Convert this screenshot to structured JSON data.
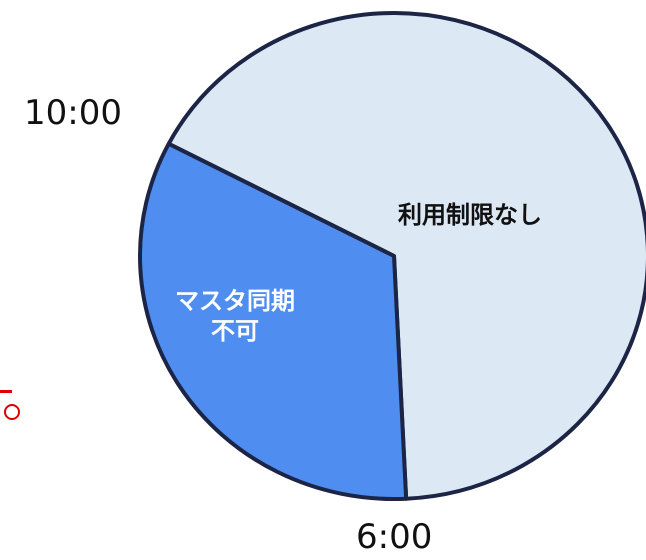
{
  "chart_data": {
    "type": "pie",
    "title": "",
    "start_time": "10:00",
    "end_time": "6:00",
    "slices": [
      {
        "label": "利用制限なし",
        "value": 0.666,
        "color": "#dde8f5"
      },
      {
        "label": "マスタ同期不可",
        "label_lines": [
          "マスタ同期",
          "不可"
        ],
        "value": 0.334,
        "color": "#4f8ef0"
      }
    ],
    "outline_color": "#1c2545",
    "legend": "none",
    "grid": false
  },
  "stray_text": "。",
  "colors": {
    "text": "#111111",
    "accent_red": "#e00000"
  }
}
